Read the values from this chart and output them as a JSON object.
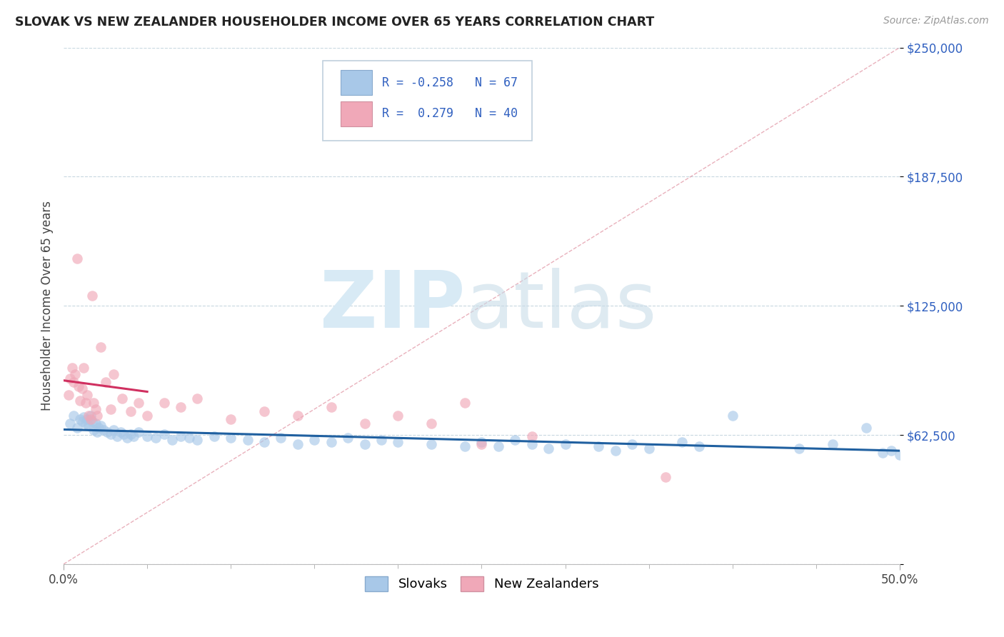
{
  "title": "SLOVAK VS NEW ZEALANDER HOUSEHOLDER INCOME OVER 65 YEARS CORRELATION CHART",
  "source": "Source: ZipAtlas.com",
  "ylabel": "Householder Income Over 65 years",
  "xlim": [
    0,
    50
  ],
  "ylim": [
    0,
    250000
  ],
  "yticks": [
    0,
    62500,
    125000,
    187500,
    250000
  ],
  "ytick_labels": [
    "",
    "$62,500",
    "$125,000",
    "$187,500",
    "$250,000"
  ],
  "slovak_R": -0.258,
  "slovak_N": 67,
  "nz_R": 0.279,
  "nz_N": 40,
  "slovak_color": "#a8c8e8",
  "nz_color": "#f0a8b8",
  "slovak_line_color": "#2060a0",
  "nz_line_color": "#d03060",
  "diag_color": "#e090a0",
  "background_color": "#ffffff",
  "watermark_zip": "ZIP",
  "watermark_atlas": "atlas",
  "watermark_color": "#d8eaf5",
  "legend_color": "#3060c0",
  "legend_R_color": "#3060c0",
  "grid_color": "#c8d8e0",
  "slovak_x": [
    0.4,
    0.6,
    0.8,
    1.0,
    1.1,
    1.2,
    1.3,
    1.4,
    1.5,
    1.6,
    1.7,
    1.8,
    1.9,
    2.0,
    2.1,
    2.2,
    2.4,
    2.6,
    2.8,
    3.0,
    3.2,
    3.4,
    3.6,
    3.8,
    4.0,
    4.2,
    4.5,
    5.0,
    5.5,
    6.0,
    6.5,
    7.0,
    7.5,
    8.0,
    9.0,
    10.0,
    11.0,
    12.0,
    13.0,
    14.0,
    15.0,
    16.0,
    17.0,
    18.0,
    19.0,
    20.0,
    22.0,
    24.0,
    25.0,
    26.0,
    27.0,
    28.0,
    29.0,
    30.0,
    32.0,
    33.0,
    34.0,
    35.0,
    37.0,
    38.0,
    40.0,
    44.0,
    46.0,
    48.0,
    49.0,
    49.5,
    50.0
  ],
  "slovak_y": [
    68000,
    72000,
    66000,
    70000,
    69000,
    71000,
    68000,
    70000,
    67000,
    72000,
    69000,
    65000,
    68000,
    64000,
    66000,
    67000,
    65000,
    64000,
    63000,
    65000,
    62000,
    64000,
    63000,
    61000,
    63000,
    62000,
    64000,
    62000,
    61000,
    63000,
    60000,
    62000,
    61000,
    60000,
    62000,
    61000,
    60000,
    59000,
    61000,
    58000,
    60000,
    59000,
    61000,
    58000,
    60000,
    59000,
    58000,
    57000,
    59000,
    57000,
    60000,
    58000,
    56000,
    58000,
    57000,
    55000,
    58000,
    56000,
    59000,
    57000,
    72000,
    56000,
    58000,
    66000,
    54000,
    55000,
    53000
  ],
  "nz_x": [
    0.3,
    0.4,
    0.5,
    0.6,
    0.7,
    0.8,
    0.9,
    1.0,
    1.1,
    1.2,
    1.3,
    1.4,
    1.5,
    1.6,
    1.7,
    1.8,
    1.9,
    2.0,
    2.2,
    2.5,
    2.8,
    3.0,
    3.5,
    4.0,
    4.5,
    5.0,
    6.0,
    7.0,
    8.0,
    10.0,
    12.0,
    14.0,
    16.0,
    18.0,
    20.0,
    22.0,
    24.0,
    25.0,
    28.0,
    36.0
  ],
  "nz_y": [
    82000,
    90000,
    95000,
    88000,
    92000,
    148000,
    86000,
    79000,
    85000,
    95000,
    78000,
    82000,
    72000,
    70000,
    130000,
    78000,
    75000,
    72000,
    105000,
    88000,
    75000,
    92000,
    80000,
    74000,
    78000,
    72000,
    78000,
    76000,
    80000,
    70000,
    74000,
    72000,
    76000,
    68000,
    72000,
    68000,
    78000,
    58000,
    62000,
    42000
  ]
}
